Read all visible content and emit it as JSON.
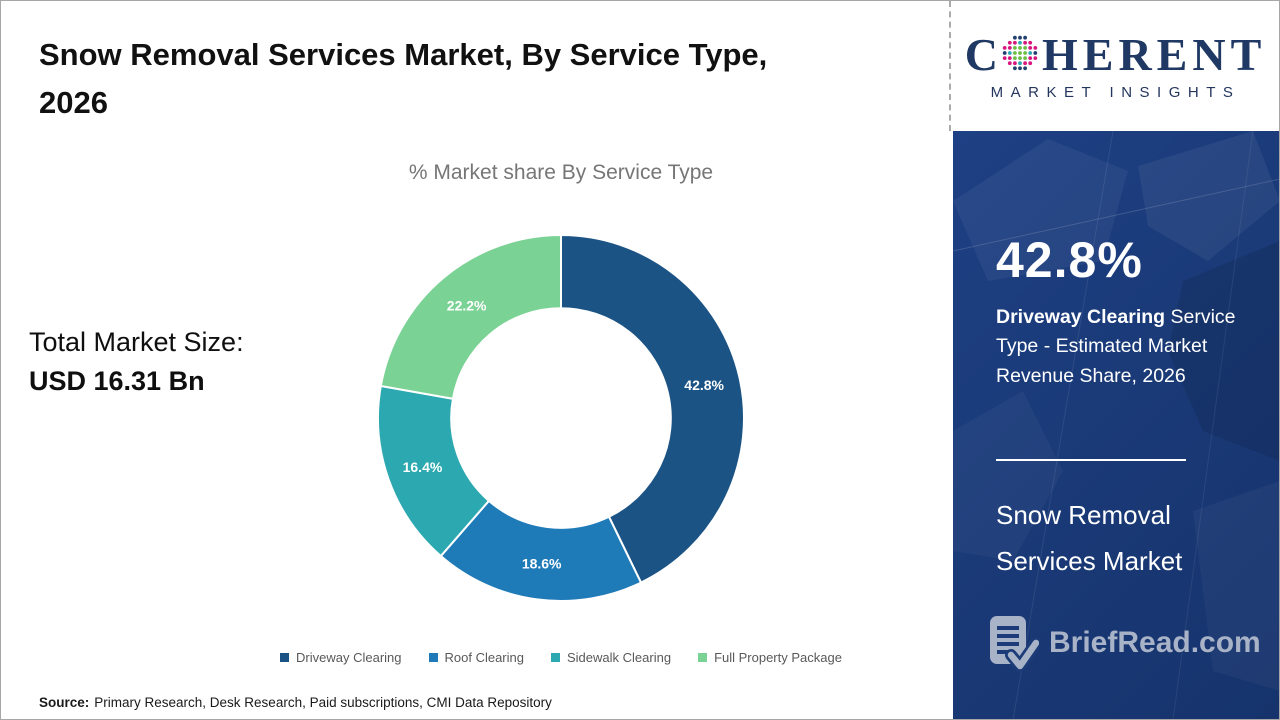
{
  "page": {
    "title_line1": "Snow Removal Services Market, By Service Type,",
    "title_line2": "2026"
  },
  "coherent_logo": {
    "c": "C",
    "rest": "HERENT",
    "tagline": "MARKET INSIGHTS",
    "navy": "#1F3864",
    "dot_colors": [
      "#21406E",
      "#6CBE45",
      "#D6187F",
      "#2FA9B1"
    ]
  },
  "chart_data": {
    "type": "pie",
    "subtype": "donut",
    "title": "% Market share By Service Type",
    "categories": [
      "Driveway Clearing",
      "Roof Clearing",
      "Sidewalk Clearing",
      "Full Property Package"
    ],
    "values": [
      42.8,
      18.6,
      16.4,
      22.2
    ],
    "labels": [
      "42.8%",
      "18.6%",
      "16.4%",
      "22.2%"
    ],
    "colors": [
      "#1B5385",
      "#1F7AB8",
      "#2CA8B0",
      "#7BD295"
    ],
    "start_angle_deg": 0,
    "direction": "clockwise",
    "inner_radius_ratio": 0.6,
    "legend_position": "bottom"
  },
  "market_size": {
    "label": "Total Market Size:",
    "value": "USD 16.31 Bn"
  },
  "source_note": {
    "label": "Source:",
    "text": "Primary Research, Desk Research, Paid subscriptions, CMI Data Repository"
  },
  "sidebar": {
    "highlight_value": "42.8%",
    "highlight_bold": "Driveway Clearing",
    "highlight_text": " Service Type - Estimated Market Revenue Share, 2026",
    "market_line1": "Snow Removal",
    "market_line2": "Services Market",
    "brand_name": "BriefRead.com",
    "panel_color": "#1C3B78",
    "accent_gray": "#A9B3C7"
  }
}
